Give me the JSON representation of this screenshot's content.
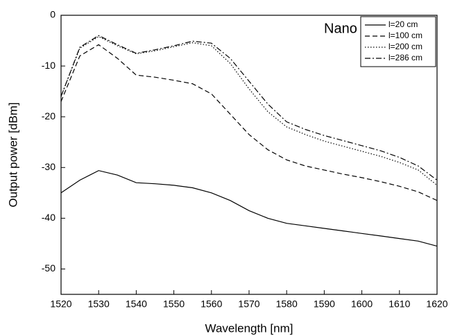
{
  "chart_data": {
    "type": "line",
    "xlabel": "Wavelength [nm]",
    "ylabel": "Output power [dBm]",
    "annotation": "Nano",
    "x": [
      1520,
      1525,
      1530,
      1535,
      1540,
      1545,
      1550,
      1555,
      1560,
      1565,
      1570,
      1575,
      1580,
      1585,
      1590,
      1595,
      1600,
      1605,
      1610,
      1615,
      1620
    ],
    "series": [
      {
        "name": "l=20 cm",
        "color": "#000000",
        "style": "solid",
        "values": [
          -35,
          -32.5,
          -30.6,
          -31.5,
          -33,
          -33.2,
          -33.5,
          -34,
          -35,
          -36.5,
          -38.5,
          -40,
          -41,
          -41.5,
          -42,
          -42.5,
          -43,
          -43.5,
          -44,
          -44.5,
          -45.5
        ]
      },
      {
        "name": "l=100 cm",
        "color": "#000000",
        "style": "dashed",
        "values": [
          -17,
          -8,
          -5.8,
          -8.5,
          -11.8,
          -12.2,
          -12.8,
          -13.5,
          -15.5,
          -19.5,
          -23.5,
          -26.5,
          -28.5,
          -29.7,
          -30.5,
          -31.3,
          -32,
          -32.8,
          -33.7,
          -34.8,
          -36.5
        ]
      },
      {
        "name": "l=200 cm",
        "color": "#000000",
        "style": "dotted",
        "values": [
          -16,
          -6.5,
          -4.2,
          -6,
          -7.6,
          -7,
          -6.2,
          -5.4,
          -6,
          -9.5,
          -14.5,
          -19,
          -22,
          -23.5,
          -24.8,
          -25.8,
          -26.8,
          -27.8,
          -29,
          -30.5,
          -33.5
        ]
      },
      {
        "name": "l=286 cm",
        "color": "#000000",
        "style": "dashdot",
        "values": [
          -16,
          -6.3,
          -4,
          -5.8,
          -7.5,
          -6.8,
          -6,
          -5.1,
          -5.5,
          -8.5,
          -13,
          -17.5,
          -21,
          -22.5,
          -23.7,
          -24.7,
          -25.7,
          -26.7,
          -28,
          -29.7,
          -32.5
        ]
      }
    ],
    "xlim": [
      1520,
      1620
    ],
    "xticks": [
      1520,
      1530,
      1540,
      1550,
      1560,
      1570,
      1580,
      1590,
      1600,
      1610,
      1620
    ],
    "ylim": [
      -55,
      0
    ],
    "yticks": [
      0,
      -10,
      -20,
      -30,
      -40,
      -50
    ],
    "grid": false,
    "legend": "upper right"
  }
}
